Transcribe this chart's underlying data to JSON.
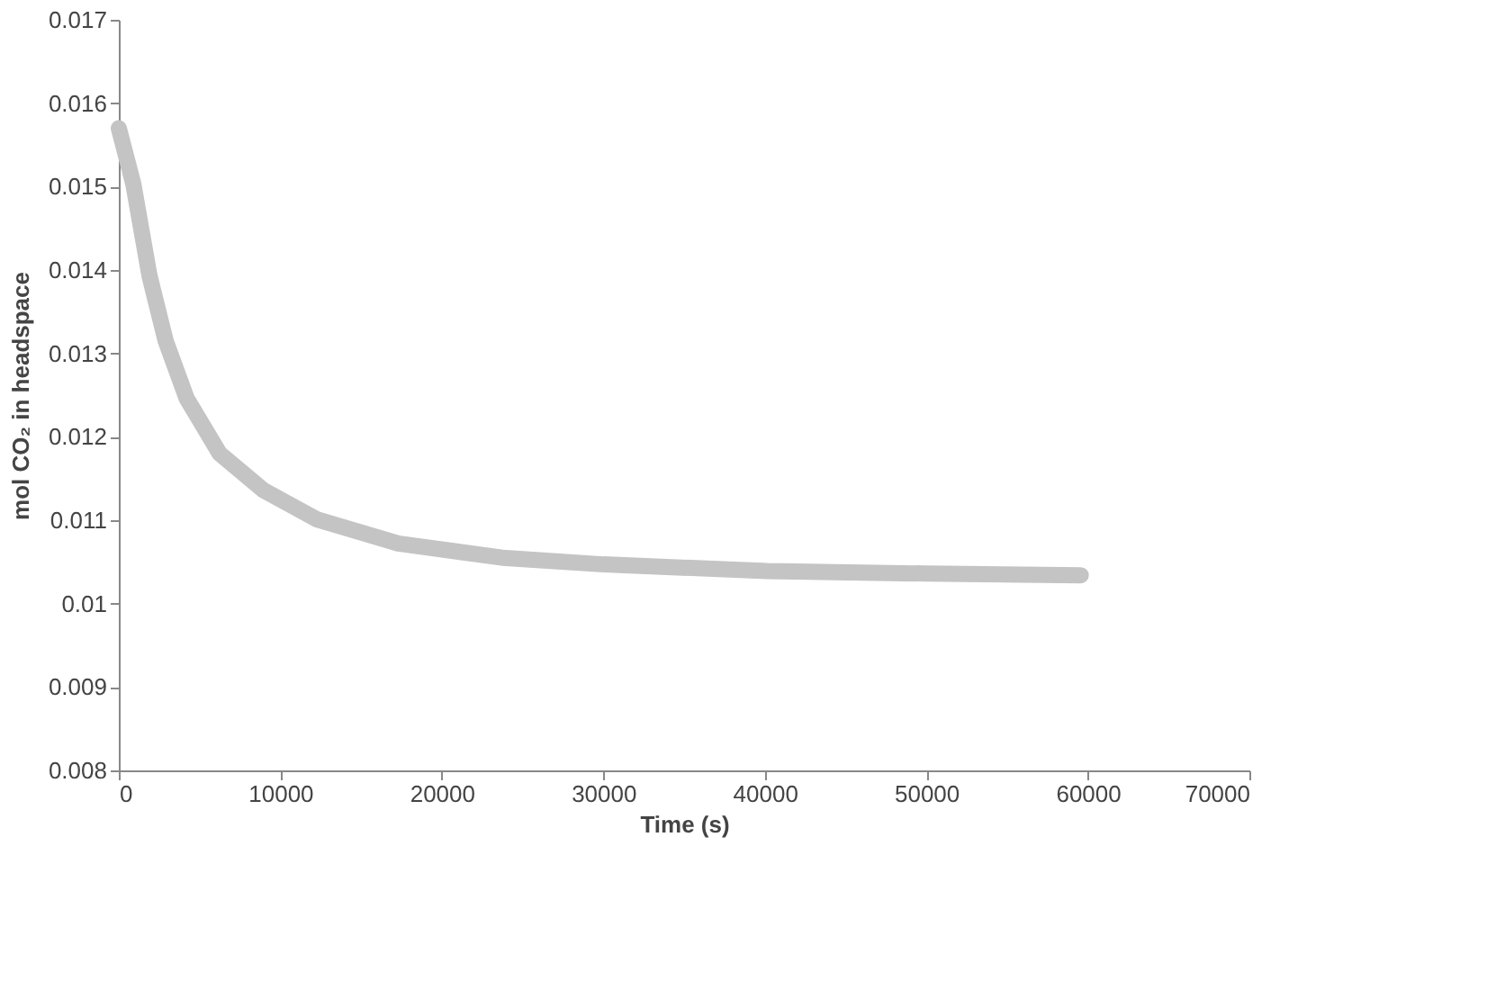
{
  "chart_data": {
    "type": "line",
    "xlabel": "Time (s)",
    "ylabel": "mol CO₂ in headspace",
    "x": [
      0,
      900,
      1900,
      2900,
      4200,
      6240,
      8950,
      12270,
      17300,
      23740,
      30000,
      40140,
      50000,
      59560
    ],
    "series": [
      {
        "color": "#c4c4c4",
        "values": [
          0.0157,
          0.01503,
          0.01393,
          0.01315,
          0.01246,
          0.0118,
          0.01136,
          0.01101,
          0.01072,
          0.01055,
          0.01047,
          0.01039,
          0.01036,
          0.01034
        ]
      }
    ],
    "xlim": [
      0,
      70000
    ],
    "xticks": [
      0,
      10000,
      20000,
      30000,
      40000,
      50000,
      60000,
      70000
    ],
    "ylim": [
      0.008,
      0.017
    ],
    "yticks": [
      0.008,
      0.009,
      0.01,
      0.011,
      0.012,
      0.013,
      0.014,
      0.015,
      0.016,
      0.017
    ],
    "grid": false,
    "legend": false,
    "line_style": "solid"
  }
}
